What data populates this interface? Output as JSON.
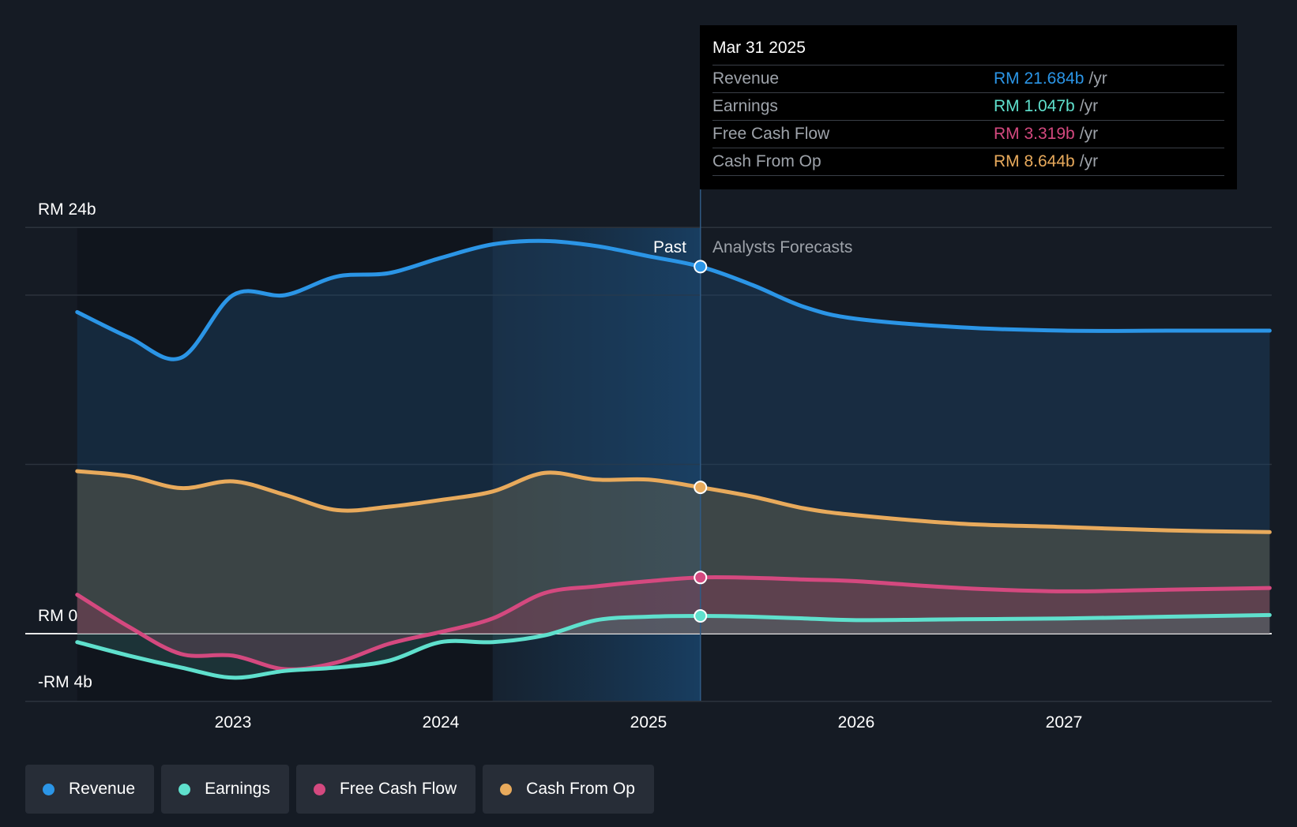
{
  "tooltip": {
    "date": "Mar 31 2025",
    "rows": [
      {
        "label": "Revenue",
        "value": "RM 21.684b",
        "unit": "/yr",
        "color": "#2b95e6"
      },
      {
        "label": "Earnings",
        "value": "RM 1.047b",
        "unit": "/yr",
        "color": "#5fe0cd"
      },
      {
        "label": "Free Cash Flow",
        "value": "RM 3.319b",
        "unit": "/yr",
        "color": "#d4497f"
      },
      {
        "label": "Cash From Op",
        "value": "RM 8.644b",
        "unit": "/yr",
        "color": "#e8aa5c"
      }
    ]
  },
  "labels": {
    "past": "Past",
    "forecast": "Analysts Forecasts"
  },
  "legend": [
    {
      "label": "Revenue",
      "color": "#2b95e6"
    },
    {
      "label": "Earnings",
      "color": "#5fe0cd"
    },
    {
      "label": "Free Cash Flow",
      "color": "#d4497f"
    },
    {
      "label": "Cash From Op",
      "color": "#e8aa5c"
    }
  ],
  "chart_data": {
    "type": "line",
    "title": "",
    "xlabel": "",
    "ylabel": "",
    "ylim": [
      -4,
      24
    ],
    "xlim": [
      2022.25,
      2027.99
    ],
    "y_tick_labels": [
      {
        "value": 24,
        "label": "RM 24b"
      },
      {
        "value": 0,
        "label": "RM 0"
      },
      {
        "value": -4,
        "label": "-RM 4b"
      }
    ],
    "gridlines": [
      24,
      20,
      10,
      0,
      -4
    ],
    "x_ticks": [
      {
        "value": 2023,
        "label": "2023"
      },
      {
        "value": 2024,
        "label": "2024"
      },
      {
        "value": 2025,
        "label": "2025"
      },
      {
        "value": 2026,
        "label": "2026"
      },
      {
        "value": 2027,
        "label": "2027"
      }
    ],
    "past_end": 2025.25,
    "highlight_start": 2024.25,
    "tooltip_x": 2025.25,
    "series": [
      {
        "name": "Revenue",
        "color": "#2b95e6",
        "x": [
          2022.25,
          2022.5,
          2022.75,
          2023.0,
          2023.25,
          2023.5,
          2023.75,
          2024.0,
          2024.25,
          2024.5,
          2024.75,
          2025.0,
          2025.25,
          2025.5,
          2025.75,
          2026.0,
          2026.5,
          2027.0,
          2027.5,
          2027.99
        ],
        "values": [
          19.0,
          17.5,
          16.3,
          20.0,
          20.0,
          21.1,
          21.3,
          22.2,
          23.0,
          23.2,
          22.9,
          22.3,
          21.684,
          20.6,
          19.3,
          18.6,
          18.1,
          17.9,
          17.9,
          17.9
        ]
      },
      {
        "name": "Cash From Op",
        "color": "#e8aa5c",
        "x": [
          2022.25,
          2022.5,
          2022.75,
          2023.0,
          2023.25,
          2023.5,
          2023.75,
          2024.0,
          2024.25,
          2024.5,
          2024.75,
          2025.0,
          2025.25,
          2025.5,
          2025.75,
          2026.0,
          2026.5,
          2027.0,
          2027.5,
          2027.99
        ],
        "values": [
          9.6,
          9.3,
          8.6,
          9.0,
          8.2,
          7.3,
          7.5,
          7.9,
          8.4,
          9.5,
          9.1,
          9.1,
          8.644,
          8.1,
          7.4,
          7.0,
          6.5,
          6.3,
          6.1,
          6.0
        ]
      },
      {
        "name": "Free Cash Flow",
        "color": "#d4497f",
        "x": [
          2022.25,
          2022.5,
          2022.75,
          2023.0,
          2023.25,
          2023.5,
          2023.75,
          2024.0,
          2024.25,
          2024.5,
          2024.75,
          2025.0,
          2025.25,
          2025.5,
          2025.75,
          2026.0,
          2026.5,
          2027.0,
          2027.5,
          2027.99
        ],
        "values": [
          2.3,
          0.4,
          -1.2,
          -1.3,
          -2.1,
          -1.7,
          -0.6,
          0.1,
          0.9,
          2.4,
          2.8,
          3.1,
          3.319,
          3.3,
          3.2,
          3.1,
          2.7,
          2.5,
          2.6,
          2.7
        ]
      },
      {
        "name": "Earnings",
        "color": "#5fe0cd",
        "x": [
          2022.25,
          2022.5,
          2022.75,
          2023.0,
          2023.25,
          2023.5,
          2023.75,
          2024.0,
          2024.25,
          2024.5,
          2024.75,
          2025.0,
          2025.25,
          2025.5,
          2025.75,
          2026.0,
          2026.5,
          2027.0,
          2027.5,
          2027.99
        ],
        "values": [
          -0.5,
          -1.3,
          -2.0,
          -2.6,
          -2.2,
          -2.0,
          -1.6,
          -0.5,
          -0.5,
          -0.1,
          0.8,
          1.0,
          1.047,
          1.0,
          0.9,
          0.8,
          0.85,
          0.9,
          1.0,
          1.1
        ]
      }
    ]
  }
}
